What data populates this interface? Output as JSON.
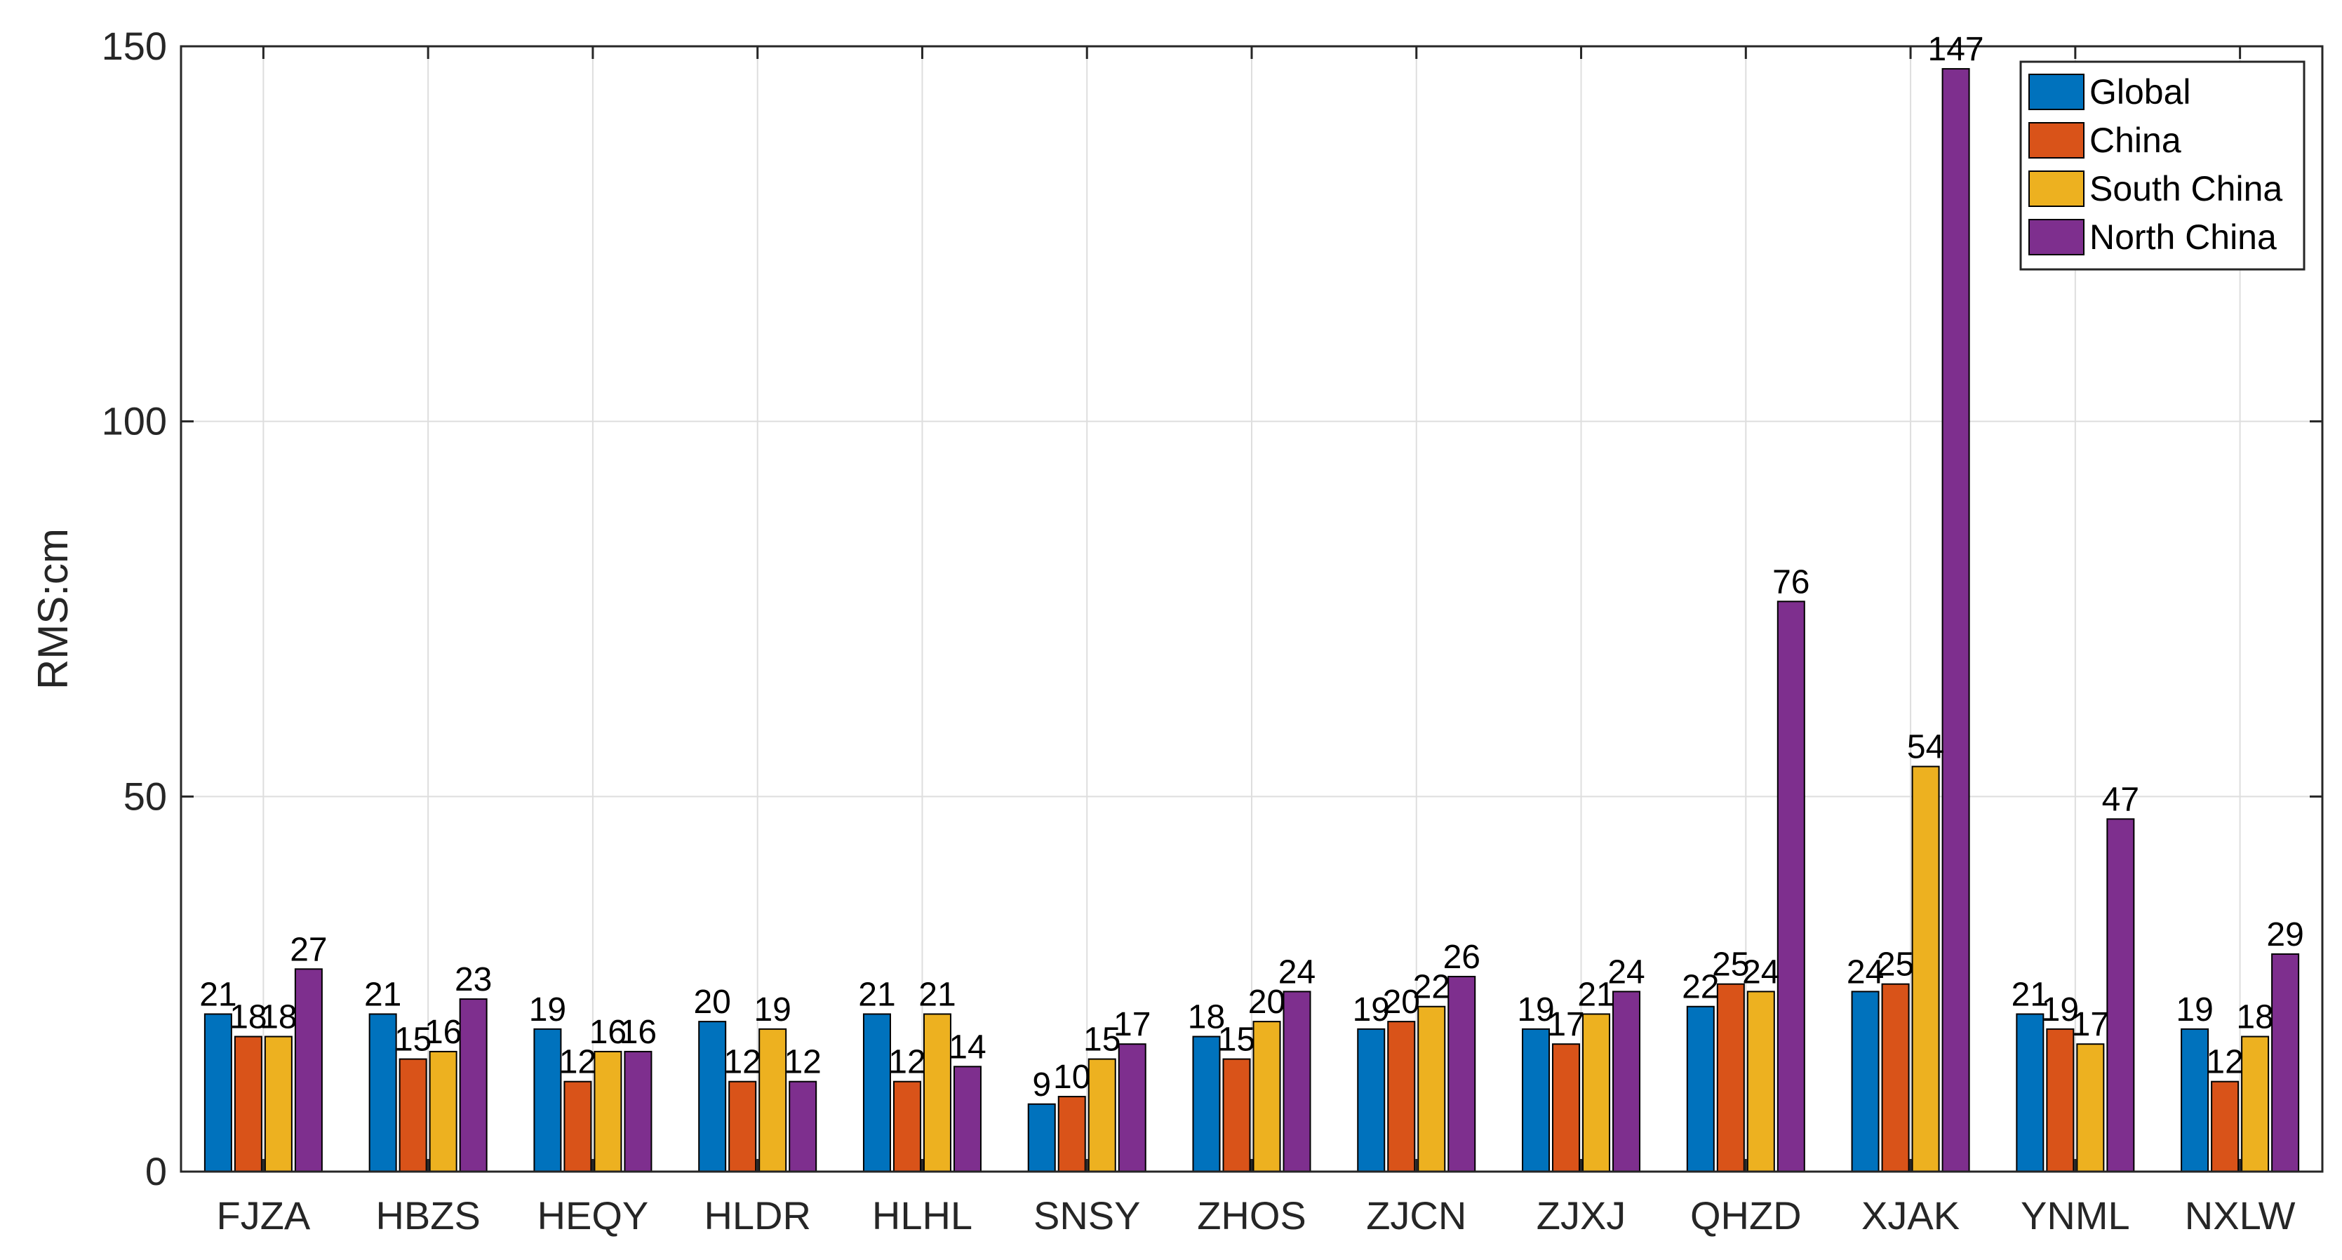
{
  "chart_data": {
    "type": "bar",
    "title": "",
    "xlabel": "",
    "ylabel": "RMS:cm",
    "ylim": [
      0,
      150
    ],
    "yticks": [
      0,
      50,
      100,
      150
    ],
    "grid": true,
    "legend_position": "top-right",
    "categories": [
      "FJZA",
      "HBZS",
      "HEQY",
      "HLDR",
      "HLHL",
      "SNSY",
      "ZHOS",
      "ZJCN",
      "ZJXJ",
      "QHZD",
      "XJAK",
      "YNML",
      "NXLW"
    ],
    "series": [
      {
        "name": "Global",
        "color": "#0072BD",
        "values": [
          21,
          21,
          19,
          20,
          21,
          9,
          18,
          19,
          19,
          22,
          24,
          21,
          19
        ]
      },
      {
        "name": "China",
        "color": "#D95319",
        "values": [
          18,
          15,
          12,
          12,
          12,
          10,
          15,
          20,
          17,
          25,
          25,
          19,
          12
        ]
      },
      {
        "name": "South China",
        "color": "#EDB120",
        "values": [
          18,
          16,
          16,
          19,
          21,
          15,
          20,
          22,
          21,
          24,
          54,
          17,
          18
        ]
      },
      {
        "name": "North China",
        "color": "#7E2F8E",
        "values": [
          27,
          23,
          16,
          12,
          14,
          17,
          24,
          26,
          24,
          76,
          147,
          47,
          29
        ]
      }
    ]
  }
}
